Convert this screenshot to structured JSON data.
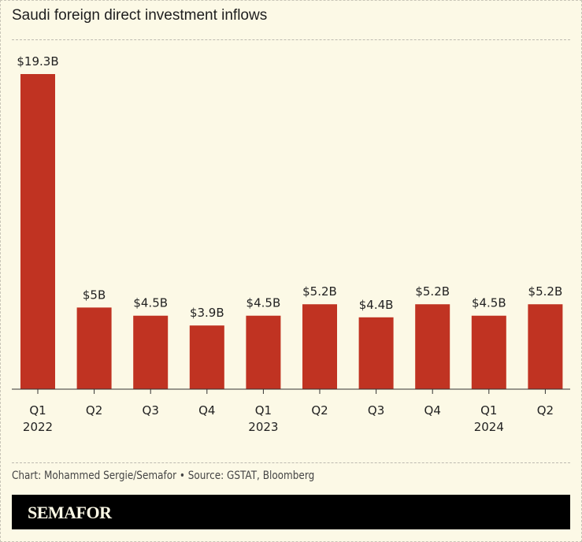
{
  "title": "Saudi foreign direct investment inflows",
  "source": "Chart: Mohammed Sergie/Semafor • Source: GSTAT, Bloomberg",
  "logo": "SEMAFOR",
  "colors": {
    "bar": "#c03322",
    "background": "#fcf9e6",
    "band": "#000000"
  },
  "chart_data": {
    "type": "bar",
    "title": "Saudi foreign direct investment inflows",
    "categories": [
      [
        "Q1",
        "2022"
      ],
      [
        "Q2",
        ""
      ],
      [
        "Q3",
        ""
      ],
      [
        "Q4",
        ""
      ],
      [
        "Q1",
        "2023"
      ],
      [
        "Q2",
        ""
      ],
      [
        "Q3",
        ""
      ],
      [
        "Q4",
        ""
      ],
      [
        "Q1",
        "2024"
      ],
      [
        "Q2",
        ""
      ]
    ],
    "values": [
      19.3,
      5,
      4.5,
      3.9,
      4.5,
      5.2,
      4.4,
      5.2,
      4.5,
      5.2
    ],
    "data_labels": [
      "$19.3B",
      "$5B",
      "$4.5B",
      "$3.9B",
      "$4.5B",
      "$5.2B",
      "$4.4B",
      "$5.2B",
      "$4.5B",
      "$5.2B"
    ],
    "unit": "$B",
    "ylim": [
      0,
      19.3
    ],
    "grid": false
  }
}
